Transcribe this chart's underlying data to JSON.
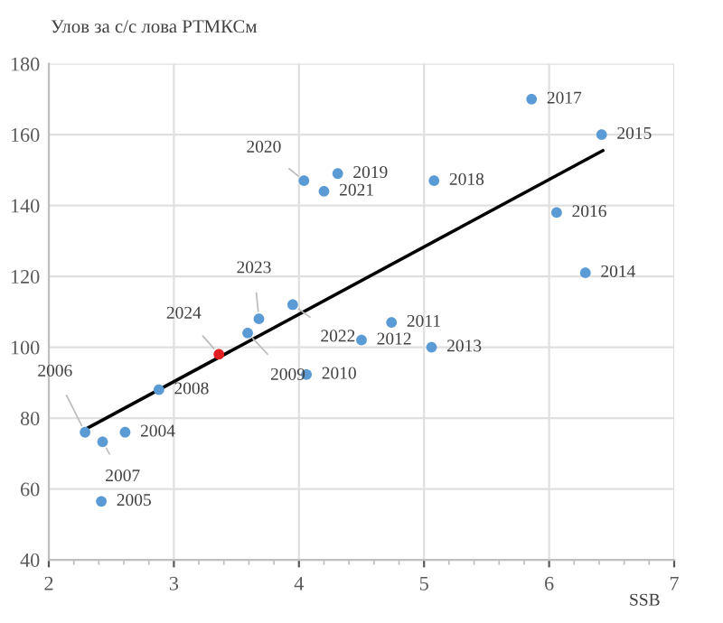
{
  "chart_data": {
    "type": "scatter",
    "ylabel": "Улов за с/с лова РТМКСм",
    "xlabel": "SSB",
    "xlim": [
      2,
      7
    ],
    "xticks": [
      2,
      3,
      4,
      5,
      6,
      7
    ],
    "ylim": [
      40,
      180
    ],
    "yticks": [
      40,
      60,
      80,
      100,
      120,
      140,
      160,
      180
    ],
    "grid": true,
    "marker": "circle",
    "series": [
      {
        "color": "#5b9bd5",
        "x": [
          2.61,
          2.42,
          2.29,
          2.43,
          2.88,
          3.59,
          4.06,
          4.74,
          4.5,
          5.06,
          6.29,
          6.42,
          6.06,
          5.86,
          5.08,
          4.31,
          4.04,
          4.2,
          3.95,
          3.68
        ],
        "values": [
          76,
          56.5,
          76,
          73.3,
          88,
          104,
          92.3,
          107,
          102,
          100,
          121,
          160,
          138,
          170,
          147,
          149,
          147,
          144,
          112,
          108
        ]
      },
      {
        "color": "#e02020",
        "x": [
          3.36
        ],
        "values": [
          98
        ]
      },
      {
        "type": "line",
        "color": "#000000",
        "marker": "none",
        "x": [
          2.29,
          6.43
        ],
        "values": [
          76.8,
          155.5
        ]
      }
    ],
    "annotations": [
      {
        "text": "2004",
        "x": 2.61,
        "y": 76
      },
      {
        "text": "2005",
        "x": 2.42,
        "y": 56.5
      },
      {
        "text": "2006",
        "x": 2.29,
        "y": 76
      },
      {
        "text": "2007",
        "x": 2.43,
        "y": 73.3
      },
      {
        "text": "2008",
        "x": 2.88,
        "y": 88
      },
      {
        "text": "2009",
        "x": 3.59,
        "y": 104
      },
      {
        "text": "2010",
        "x": 4.06,
        "y": 92.3
      },
      {
        "text": "2011",
        "x": 4.74,
        "y": 107
      },
      {
        "text": "2012",
        "x": 4.5,
        "y": 102
      },
      {
        "text": "2013",
        "x": 5.06,
        "y": 100
      },
      {
        "text": "2014",
        "x": 6.29,
        "y": 121
      },
      {
        "text": "2015",
        "x": 6.42,
        "y": 160
      },
      {
        "text": "2016",
        "x": 6.06,
        "y": 138
      },
      {
        "text": "2017",
        "x": 5.86,
        "y": 170
      },
      {
        "text": "2018",
        "x": 5.08,
        "y": 147
      },
      {
        "text": "2019",
        "x": 4.31,
        "y": 149
      },
      {
        "text": "2020",
        "x": 4.04,
        "y": 147
      },
      {
        "text": "2021",
        "x": 4.2,
        "y": 144
      },
      {
        "text": "2022",
        "x": 3.95,
        "y": 112
      },
      {
        "text": "2023",
        "x": 3.68,
        "y": 108
      },
      {
        "text": "2024",
        "x": 3.36,
        "y": 98
      }
    ]
  }
}
